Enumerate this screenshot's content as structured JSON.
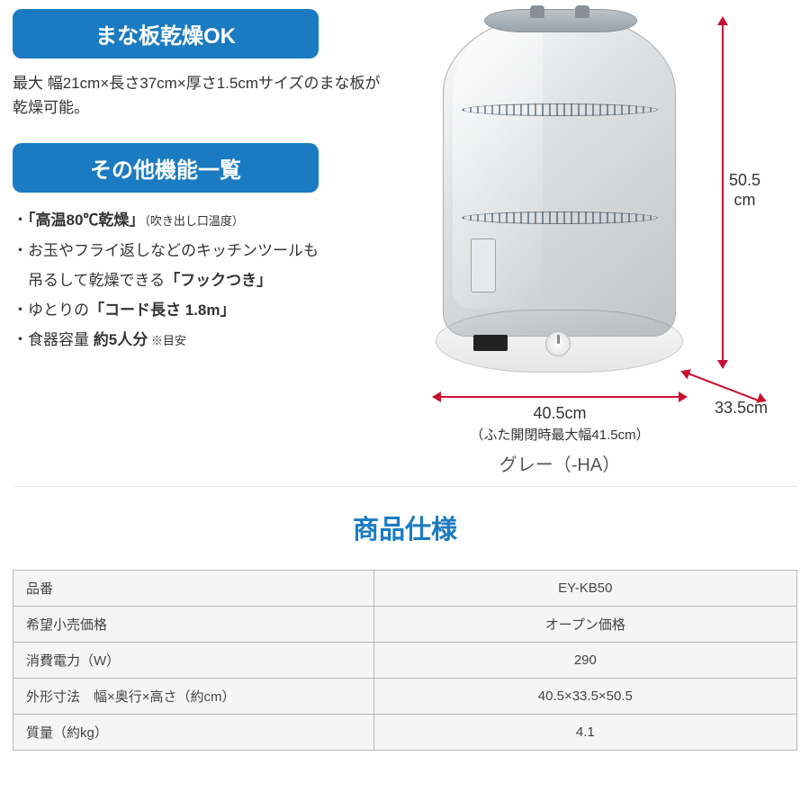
{
  "banners": {
    "cutting_board": "まな板乾燥OK",
    "other_features": "その他機能一覧"
  },
  "cutting_board_desc": "最大 幅21cm×長さ37cm×厚さ1.5cmサイズのまな板が乾燥可能。",
  "features": {
    "f1_pre": "・",
    "f1_bold": "「高温80℃乾燥」",
    "f1_small": "（吹き出し口温度）",
    "f2_line1": "・お玉やフライ返しなどのキッチンツールも",
    "f2_line2_pre": "　吊るして乾燥できる",
    "f2_line2_bold": "「フックつき」",
    "f3_pre": "・ゆとりの",
    "f3_bold": "「コード長さ 1.8m」",
    "f4_pre": "・食器容量 ",
    "f4_bold": "約5人分",
    "f4_small": " ※目安"
  },
  "dimensions": {
    "height": "50.5",
    "height_unit": "cm",
    "width": "40.5cm",
    "width_note": "（ふた開閉時最大幅41.5cm）",
    "depth": "33.5cm"
  },
  "color_name": "グレー（-HA）",
  "spec_title": "商品仕様",
  "spec_table": {
    "rows": [
      {
        "label": "品番",
        "value": "EY-KB50"
      },
      {
        "label": "希望小売価格",
        "value": "オープン価格"
      },
      {
        "label": "消費電力（W）",
        "value": "290"
      },
      {
        "label": "外形寸法　幅×奥行×高さ（約cm）",
        "value": "40.5×33.5×50.5"
      },
      {
        "label": "質量（約kg）",
        "value": "4.1"
      }
    ]
  },
  "colors": {
    "banner_bg": "#1b7bc2",
    "dim_line": "#c8102e",
    "table_border": "#b8b8b8",
    "table_bg": "#f5f5f5"
  }
}
